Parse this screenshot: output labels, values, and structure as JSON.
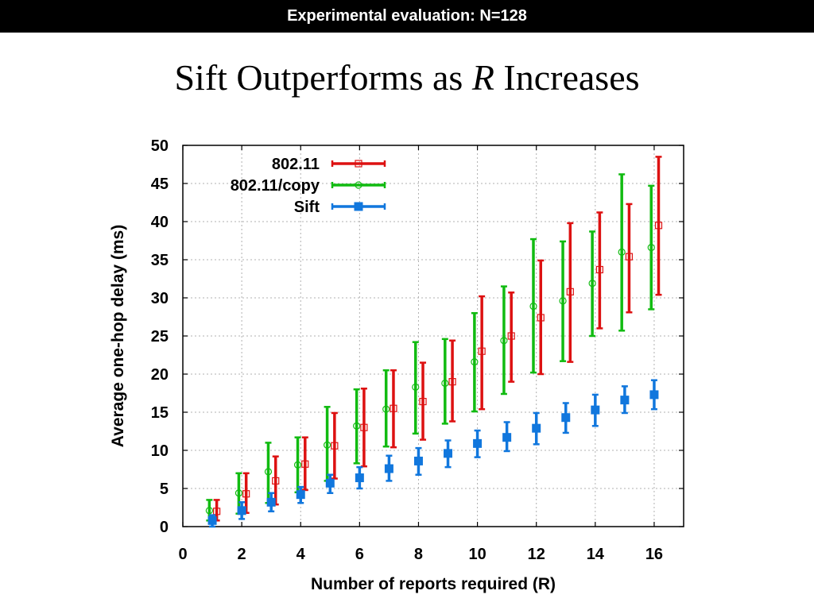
{
  "header": {
    "banner": "Experimental evaluation: N=128"
  },
  "slide": {
    "title_prefix": "Sift Outperforms as ",
    "title_var": "R",
    "title_suffix": " Increases"
  },
  "chart_data": {
    "type": "scatter",
    "xlabel": "Number of reports required (R)",
    "ylabel": "Average one-hop delay (ms)",
    "xlim": [
      0,
      17
    ],
    "ylim": [
      0,
      50
    ],
    "xticks": [
      0,
      2,
      4,
      6,
      8,
      10,
      12,
      14,
      16
    ],
    "yticks": [
      0,
      5,
      10,
      15,
      20,
      25,
      30,
      35,
      40,
      45,
      50
    ],
    "grid": true,
    "legend_position": "top-left",
    "series": [
      {
        "name": "802.11",
        "color": "#dd1111",
        "marker": "open-square",
        "x_offset": 0.15,
        "x": [
          1,
          2,
          3,
          4,
          5,
          6,
          7,
          8,
          9,
          10,
          11,
          12,
          13,
          14,
          15,
          16
        ],
        "y": [
          2.0,
          4.3,
          6.0,
          8.2,
          10.6,
          13.0,
          15.5,
          16.4,
          19.0,
          23.0,
          25.0,
          27.4,
          30.8,
          33.7,
          35.4,
          39.5
        ],
        "low": [
          0.8,
          1.8,
          2.9,
          4.8,
          6.3,
          7.9,
          10.4,
          11.4,
          13.8,
          15.4,
          19.0,
          20.0,
          21.6,
          26.0,
          28.1,
          30.4
        ],
        "high": [
          3.5,
          7.0,
          9.2,
          11.7,
          14.9,
          18.1,
          20.5,
          21.5,
          24.4,
          30.2,
          30.7,
          34.9,
          39.8,
          41.2,
          42.3,
          48.5
        ]
      },
      {
        "name": "802.11/copy",
        "color": "#11bb11",
        "marker": "open-circle",
        "x_offset": -0.1,
        "x": [
          1,
          2,
          3,
          4,
          5,
          6,
          7,
          8,
          9,
          10,
          11,
          12,
          13,
          14,
          15,
          16
        ],
        "y": [
          2.1,
          4.4,
          7.2,
          8.1,
          10.7,
          13.2,
          15.4,
          18.3,
          18.8,
          21.6,
          24.4,
          28.9,
          29.6,
          31.9,
          36.0,
          36.6
        ],
        "low": [
          0.8,
          1.7,
          3.1,
          4.5,
          6.0,
          8.3,
          10.5,
          12.2,
          13.5,
          15.1,
          17.4,
          20.2,
          21.7,
          25.0,
          25.7,
          28.5
        ],
        "high": [
          3.5,
          7.0,
          11.0,
          11.7,
          15.7,
          18.0,
          20.5,
          24.2,
          24.6,
          28.0,
          31.5,
          37.7,
          37.4,
          38.7,
          46.2,
          44.7
        ]
      },
      {
        "name": "Sift",
        "color": "#1177dd",
        "marker": "filled-square",
        "x_offset": 0,
        "x": [
          1,
          2,
          3,
          4,
          5,
          6,
          7,
          8,
          9,
          10,
          11,
          12,
          13,
          14,
          15,
          16
        ],
        "y": [
          0.8,
          2.1,
          3.2,
          4.2,
          5.7,
          6.4,
          7.6,
          8.6,
          9.6,
          10.9,
          11.7,
          12.9,
          14.3,
          15.3,
          16.6,
          17.3
        ],
        "low": [
          0.0,
          1.0,
          2.0,
          3.1,
          4.4,
          5.0,
          6.0,
          6.8,
          7.8,
          9.1,
          9.9,
          10.8,
          12.3,
          13.2,
          14.9,
          15.4
        ],
        "high": [
          1.5,
          3.2,
          4.4,
          5.2,
          6.8,
          7.8,
          9.3,
          10.3,
          11.3,
          12.6,
          13.7,
          14.9,
          16.2,
          17.3,
          18.4,
          19.2
        ]
      }
    ]
  }
}
